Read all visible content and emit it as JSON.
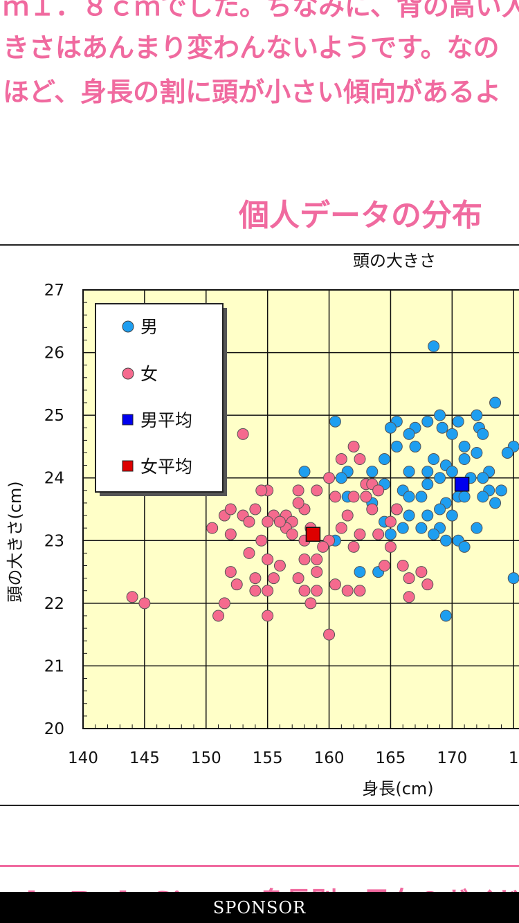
{
  "article": {
    "lines": [
      "ｍ１．８ｃｍでした。ちなみに、背の高い人",
      "きさはあんまり変わんないようです。なの",
      "ほど、身長の割に頭が小さい傾向があるよ"
    ],
    "section_title": "個人データの分布",
    "footer_peek": "by Body Size — 身長別・男女のガイド"
  },
  "sponsor": {
    "label": "SPONSOR"
  },
  "colors": {
    "accent": "#f06a9f",
    "plot_bg": "#ffffc8",
    "male": "#1e9ef0",
    "female": "#f56a8e",
    "male_avg": "#0000ee",
    "female_avg": "#dd0000"
  },
  "chart_data": {
    "type": "scatter",
    "title": "頭の大きさ",
    "xlabel": "身長(cm)",
    "ylabel": "頭の大きさ(cm)",
    "xlim": [
      140,
      176
    ],
    "ylim": [
      20,
      27
    ],
    "x_ticks": [
      "140",
      "145",
      "150",
      "155",
      "160",
      "165",
      "170",
      "1"
    ],
    "y_ticks": [
      "20",
      "21",
      "22",
      "23",
      "24",
      "25",
      "26",
      "27"
    ],
    "grid": true,
    "legend_position": "top-left",
    "legend": [
      "男",
      "女",
      "男平均",
      "女平均"
    ],
    "series": [
      {
        "name": "男",
        "marker": "circle",
        "points": [
          [
            168.5,
            26.1
          ],
          [
            173.5,
            25.2
          ],
          [
            172.0,
            25.0
          ],
          [
            169.0,
            25.0
          ],
          [
            168.0,
            24.9
          ],
          [
            165.5,
            24.9
          ],
          [
            170.5,
            24.9
          ],
          [
            172.2,
            24.8
          ],
          [
            160.5,
            24.9
          ],
          [
            165.0,
            24.8
          ],
          [
            167.0,
            24.8
          ],
          [
            169.2,
            24.8
          ],
          [
            166.5,
            24.7
          ],
          [
            170.0,
            24.7
          ],
          [
            172.5,
            24.7
          ],
          [
            175.0,
            24.5
          ],
          [
            174.5,
            24.4
          ],
          [
            165.5,
            24.5
          ],
          [
            167.0,
            24.5
          ],
          [
            168.5,
            24.3
          ],
          [
            171.0,
            24.5
          ],
          [
            172.0,
            24.4
          ],
          [
            164.5,
            24.3
          ],
          [
            169.5,
            24.2
          ],
          [
            171.0,
            24.3
          ],
          [
            163.5,
            24.1
          ],
          [
            166.5,
            24.1
          ],
          [
            168.0,
            24.1
          ],
          [
            170.0,
            24.1
          ],
          [
            173.0,
            24.1
          ],
          [
            158.0,
            24.1
          ],
          [
            161.5,
            24.1
          ],
          [
            161.0,
            24.0
          ],
          [
            169.0,
            24.0
          ],
          [
            171.5,
            24.0
          ],
          [
            172.5,
            24.0
          ],
          [
            166.0,
            23.8
          ],
          [
            168.0,
            23.9
          ],
          [
            173.0,
            23.8
          ],
          [
            174.0,
            23.8
          ],
          [
            161.5,
            23.7
          ],
          [
            163.0,
            23.7
          ],
          [
            166.5,
            23.7
          ],
          [
            167.5,
            23.7
          ],
          [
            170.5,
            23.7
          ],
          [
            171.0,
            23.7
          ],
          [
            172.5,
            23.7
          ],
          [
            173.5,
            23.6
          ],
          [
            169.5,
            23.6
          ],
          [
            163.5,
            23.6
          ],
          [
            165.5,
            23.5
          ],
          [
            166.5,
            23.4
          ],
          [
            168.0,
            23.4
          ],
          [
            169.0,
            23.5
          ],
          [
            170.0,
            23.4
          ],
          [
            164.5,
            23.3
          ],
          [
            166.0,
            23.2
          ],
          [
            167.5,
            23.2
          ],
          [
            169.0,
            23.2
          ],
          [
            172.0,
            23.2
          ],
          [
            165.0,
            23.1
          ],
          [
            168.5,
            23.1
          ],
          [
            169.5,
            23.0
          ],
          [
            170.5,
            23.0
          ],
          [
            171.0,
            22.9
          ],
          [
            175.0,
            22.4
          ],
          [
            162.5,
            22.5
          ],
          [
            164.0,
            22.5
          ],
          [
            169.5,
            21.8
          ],
          [
            164.5,
            23.9
          ],
          [
            160.5,
            23.0
          ]
        ]
      },
      {
        "name": "女",
        "marker": "circle",
        "points": [
          [
            153.0,
            24.7
          ],
          [
            162.0,
            24.5
          ],
          [
            161.0,
            24.3
          ],
          [
            162.5,
            24.3
          ],
          [
            160.0,
            24.0
          ],
          [
            163.0,
            23.9
          ],
          [
            163.5,
            23.9
          ],
          [
            164.0,
            23.8
          ],
          [
            155.0,
            23.8
          ],
          [
            157.5,
            23.8
          ],
          [
            154.5,
            23.8
          ],
          [
            159.0,
            23.8
          ],
          [
            160.5,
            23.7
          ],
          [
            162.0,
            23.7
          ],
          [
            163.0,
            23.7
          ],
          [
            165.5,
            23.5
          ],
          [
            151.5,
            23.4
          ],
          [
            152.0,
            23.5
          ],
          [
            153.0,
            23.4
          ],
          [
            154.0,
            23.5
          ],
          [
            155.5,
            23.4
          ],
          [
            156.5,
            23.4
          ],
          [
            158.0,
            23.5
          ],
          [
            157.0,
            23.3
          ],
          [
            153.5,
            23.3
          ],
          [
            155.0,
            23.3
          ],
          [
            156.5,
            23.2
          ],
          [
            158.5,
            23.2
          ],
          [
            150.5,
            23.2
          ],
          [
            161.0,
            23.2
          ],
          [
            162.5,
            23.1
          ],
          [
            164.0,
            23.1
          ],
          [
            152.0,
            23.1
          ],
          [
            157.0,
            23.1
          ],
          [
            158.0,
            23.0
          ],
          [
            160.0,
            23.0
          ],
          [
            162.0,
            22.9
          ],
          [
            165.0,
            22.9
          ],
          [
            153.5,
            22.8
          ],
          [
            155.0,
            22.7
          ],
          [
            156.0,
            22.6
          ],
          [
            158.0,
            22.7
          ],
          [
            159.0,
            22.7
          ],
          [
            164.5,
            22.6
          ],
          [
            166.0,
            22.6
          ],
          [
            152.0,
            22.5
          ],
          [
            154.0,
            22.4
          ],
          [
            155.5,
            22.4
          ],
          [
            157.5,
            22.4
          ],
          [
            159.0,
            22.5
          ],
          [
            160.5,
            22.3
          ],
          [
            166.5,
            22.4
          ],
          [
            167.5,
            22.5
          ],
          [
            168.0,
            22.3
          ],
          [
            152.5,
            22.3
          ],
          [
            154.0,
            22.2
          ],
          [
            155.0,
            22.2
          ],
          [
            158.0,
            22.2
          ],
          [
            159.0,
            22.2
          ],
          [
            161.5,
            22.2
          ],
          [
            162.5,
            22.2
          ],
          [
            166.5,
            22.1
          ],
          [
            144.0,
            22.1
          ],
          [
            145.0,
            22.0
          ],
          [
            151.5,
            22.0
          ],
          [
            158.5,
            22.0
          ],
          [
            151.0,
            21.8
          ],
          [
            155.0,
            21.8
          ],
          [
            160.0,
            21.5
          ],
          [
            163.5,
            23.5
          ],
          [
            157.5,
            23.6
          ],
          [
            156.0,
            23.3
          ],
          [
            161.5,
            23.4
          ],
          [
            165.0,
            23.3
          ],
          [
            159.5,
            22.9
          ],
          [
            154.5,
            23.0
          ]
        ]
      },
      {
        "name": "男平均",
        "marker": "square",
        "points": [
          [
            170.8,
            23.9
          ]
        ]
      },
      {
        "name": "女平均",
        "marker": "square",
        "points": [
          [
            158.7,
            23.1
          ]
        ]
      }
    ]
  }
}
